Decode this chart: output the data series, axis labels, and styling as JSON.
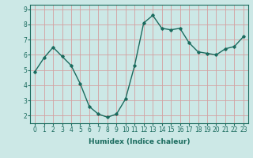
{
  "x": [
    0,
    1,
    2,
    3,
    4,
    5,
    6,
    7,
    8,
    9,
    10,
    11,
    12,
    13,
    14,
    15,
    16,
    17,
    18,
    19,
    20,
    21,
    22,
    23
  ],
  "y": [
    4.9,
    5.8,
    6.5,
    5.9,
    5.3,
    4.1,
    2.6,
    2.1,
    1.9,
    2.1,
    3.1,
    5.3,
    8.1,
    8.6,
    7.75,
    7.65,
    7.75,
    6.8,
    6.2,
    6.1,
    6.0,
    6.4,
    6.55,
    7.2
  ],
  "line_color": "#1a6b5e",
  "bg_color": "#cce8e6",
  "grid_color": "#d4a0a0",
  "xlabel": "Humidex (Indice chaleur)",
  "ylim": [
    1.5,
    9.3
  ],
  "xlim": [
    -0.5,
    23.5
  ],
  "yticks": [
    2,
    3,
    4,
    5,
    6,
    7,
    8,
    9
  ],
  "xticks": [
    0,
    1,
    2,
    3,
    4,
    5,
    6,
    7,
    8,
    9,
    10,
    11,
    12,
    13,
    14,
    15,
    16,
    17,
    18,
    19,
    20,
    21,
    22,
    23
  ],
  "marker": "D",
  "markersize": 1.8,
  "linewidth": 1.0,
  "xlabel_fontsize": 6.5,
  "tick_fontsize": 5.5
}
